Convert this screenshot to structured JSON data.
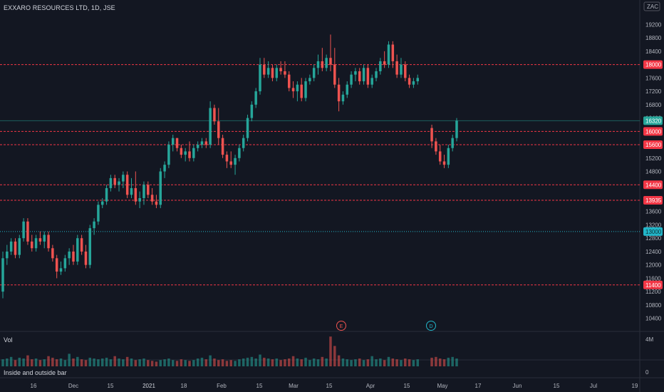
{
  "header": {
    "title": "EXXARO RESOURCES LTD, 1D, JSE"
  },
  "currency_badge": "ZAC",
  "volume_panel": {
    "label": "Vol",
    "scale_top": "4M"
  },
  "indicator_panel": {
    "label": "Inside and outside bar",
    "scale_zero": "0"
  },
  "colors": {
    "bg": "#131722",
    "up": "#26a69a",
    "down": "#ef5350",
    "text": "#b2b5be",
    "hline": "#f23645",
    "cyan": "#22b5c8",
    "inside": "#f0e68c"
  },
  "chart_data": {
    "type": "candlestick",
    "title": "EXXARO RESOURCES LTD, 1D, JSE",
    "y_axis_ticks": [
      10400,
      10800,
      11200,
      11600,
      12000,
      12400,
      12800,
      13200,
      13600,
      14000,
      14400,
      14800,
      15200,
      15600,
      16000,
      16400,
      16800,
      17200,
      17600,
      18000,
      18400,
      18800,
      19200
    ],
    "y_range": [
      10200,
      19700
    ],
    "x_axis_labels": [
      "16",
      "Dec",
      "15",
      "2021",
      "18",
      "Feb",
      "15",
      "Mar",
      "15",
      "Apr",
      "15",
      "May",
      "17",
      "Jun",
      "15",
      "Jul",
      "19"
    ],
    "price_lines": [
      {
        "value": 18000,
        "label": "18000",
        "style": "dashed",
        "color": "#f23645"
      },
      {
        "value": 16000,
        "label": "16000",
        "style": "dashed",
        "color": "#f23645"
      },
      {
        "value": 15600,
        "label": "15600",
        "style": "dashed",
        "color": "#f23645"
      },
      {
        "value": 14400,
        "label": "14400",
        "style": "dashed",
        "color": "#f23645"
      },
      {
        "value": 13935,
        "label": "13935",
        "style": "dashed",
        "color": "#f23645"
      },
      {
        "value": 13000,
        "label": "13000",
        "style": "dotted",
        "color": "#22b5c8"
      },
      {
        "value": 11400,
        "label": "11400",
        "style": "dashed",
        "color": "#f23645"
      }
    ],
    "last_price": {
      "value": 16320,
      "label": "16320",
      "color": "#26a69a"
    },
    "events": [
      {
        "date_label": "Mar 22",
        "letter": "E",
        "color": "#ef5350"
      },
      {
        "date_label": "Apr 26",
        "letter": "D",
        "color": "#22b5c8"
      }
    ],
    "volume_axis": {
      "max_label": "4M"
    },
    "indicator_axis": {
      "zero_label": "0"
    },
    "candles": [
      {
        "o": 11200,
        "h": 12400,
        "l": 11000,
        "c": 12200
      },
      {
        "o": 12200,
        "h": 12600,
        "l": 12000,
        "c": 12400
      },
      {
        "o": 12400,
        "h": 12800,
        "l": 12300,
        "c": 12700
      },
      {
        "o": 12700,
        "h": 12800,
        "l": 12200,
        "c": 12300
      },
      {
        "o": 12300,
        "h": 12900,
        "l": 12200,
        "c": 12800
      },
      {
        "o": 12800,
        "h": 13400,
        "l": 12700,
        "c": 13300
      },
      {
        "o": 13300,
        "h": 13400,
        "l": 12600,
        "c": 12700
      },
      {
        "o": 12700,
        "h": 12900,
        "l": 12400,
        "c": 12500
      },
      {
        "o": 12500,
        "h": 12900,
        "l": 12400,
        "c": 12800
      },
      {
        "o": 12800,
        "h": 13000,
        "l": 12600,
        "c": 12700
      },
      {
        "o": 12700,
        "h": 13000,
        "l": 12500,
        "c": 12900
      },
      {
        "o": 12900,
        "h": 13000,
        "l": 12400,
        "c": 12500
      },
      {
        "o": 12500,
        "h": 12600,
        "l": 12100,
        "c": 12200
      },
      {
        "o": 12200,
        "h": 12300,
        "l": 11600,
        "c": 11800
      },
      {
        "o": 11800,
        "h": 12100,
        "l": 11700,
        "c": 11900
      },
      {
        "o": 11900,
        "h": 12300,
        "l": 11800,
        "c": 12200
      },
      {
        "o": 12200,
        "h": 12500,
        "l": 12000,
        "c": 12400
      },
      {
        "o": 12400,
        "h": 12600,
        "l": 12000,
        "c": 12100
      },
      {
        "o": 12100,
        "h": 12900,
        "l": 12000,
        "c": 12800
      },
      {
        "o": 12800,
        "h": 12900,
        "l": 12300,
        "c": 12400
      },
      {
        "o": 12400,
        "h": 12600,
        "l": 11900,
        "c": 12000
      },
      {
        "o": 12000,
        "h": 13200,
        "l": 11900,
        "c": 13100
      },
      {
        "o": 13100,
        "h": 13400,
        "l": 12900,
        "c": 13300
      },
      {
        "o": 13300,
        "h": 13900,
        "l": 13200,
        "c": 13800
      },
      {
        "o": 13800,
        "h": 14000,
        "l": 13700,
        "c": 13900
      },
      {
        "o": 13900,
        "h": 14400,
        "l": 13800,
        "c": 14300
      },
      {
        "o": 14300,
        "h": 14700,
        "l": 14200,
        "c": 14600
      },
      {
        "o": 14600,
        "h": 14700,
        "l": 14300,
        "c": 14400
      },
      {
        "o": 14400,
        "h": 14600,
        "l": 14200,
        "c": 14500
      },
      {
        "o": 14500,
        "h": 14800,
        "l": 14300,
        "c": 14700
      },
      {
        "o": 14700,
        "h": 14800,
        "l": 14000,
        "c": 14100
      },
      {
        "o": 14100,
        "h": 14600,
        "l": 14000,
        "c": 14300
      },
      {
        "o": 14300,
        "h": 14800,
        "l": 13800,
        "c": 13900
      },
      {
        "o": 13900,
        "h": 14200,
        "l": 13700,
        "c": 14000
      },
      {
        "o": 14000,
        "h": 14500,
        "l": 13800,
        "c": 14400
      },
      {
        "o": 14400,
        "h": 14500,
        "l": 14000,
        "c": 14100
      },
      {
        "o": 14100,
        "h": 14300,
        "l": 13800,
        "c": 13900
      },
      {
        "o": 13900,
        "h": 14100,
        "l": 13700,
        "c": 13800
      },
      {
        "o": 13800,
        "h": 14900,
        "l": 13700,
        "c": 14800
      },
      {
        "o": 14800,
        "h": 15100,
        "l": 14600,
        "c": 15000
      },
      {
        "o": 15000,
        "h": 15700,
        "l": 14900,
        "c": 15600
      },
      {
        "o": 15600,
        "h": 15900,
        "l": 15400,
        "c": 15800
      },
      {
        "o": 15800,
        "h": 15800,
        "l": 15400,
        "c": 15500
      },
      {
        "o": 15500,
        "h": 15600,
        "l": 15200,
        "c": 15300
      },
      {
        "o": 15300,
        "h": 15500,
        "l": 15100,
        "c": 15400
      },
      {
        "o": 15400,
        "h": 15700,
        "l": 15100,
        "c": 15200
      },
      {
        "o": 15200,
        "h": 15600,
        "l": 15100,
        "c": 15500
      },
      {
        "o": 15500,
        "h": 15700,
        "l": 15400,
        "c": 15600
      },
      {
        "o": 15600,
        "h": 15800,
        "l": 15500,
        "c": 15700
      },
      {
        "o": 15700,
        "h": 15800,
        "l": 15500,
        "c": 15600
      },
      {
        "o": 15600,
        "h": 16900,
        "l": 15500,
        "c": 16700
      },
      {
        "o": 16700,
        "h": 16800,
        "l": 16200,
        "c": 16300
      },
      {
        "o": 16300,
        "h": 16700,
        "l": 15600,
        "c": 15800
      },
      {
        "o": 15800,
        "h": 15900,
        "l": 15200,
        "c": 15300
      },
      {
        "o": 15300,
        "h": 15400,
        "l": 14900,
        "c": 15100
      },
      {
        "o": 15100,
        "h": 15400,
        "l": 14900,
        "c": 15000
      },
      {
        "o": 15000,
        "h": 15300,
        "l": 14700,
        "c": 15200
      },
      {
        "o": 15200,
        "h": 15600,
        "l": 15100,
        "c": 15500
      },
      {
        "o": 15500,
        "h": 15900,
        "l": 15400,
        "c": 15800
      },
      {
        "o": 15800,
        "h": 16500,
        "l": 15700,
        "c": 16400
      },
      {
        "o": 16400,
        "h": 16900,
        "l": 16300,
        "c": 16800
      },
      {
        "o": 16800,
        "h": 17300,
        "l": 16700,
        "c": 17200
      },
      {
        "o": 17200,
        "h": 18200,
        "l": 17100,
        "c": 18000
      },
      {
        "o": 18000,
        "h": 18200,
        "l": 17600,
        "c": 17700
      },
      {
        "o": 17700,
        "h": 18100,
        "l": 17600,
        "c": 17900
      },
      {
        "o": 17900,
        "h": 18000,
        "l": 17500,
        "c": 17600
      },
      {
        "o": 17600,
        "h": 18000,
        "l": 17500,
        "c": 17900
      },
      {
        "o": 17900,
        "h": 18100,
        "l": 17700,
        "c": 17800
      },
      {
        "o": 17800,
        "h": 18100,
        "l": 17600,
        "c": 17700
      },
      {
        "o": 17700,
        "h": 17800,
        "l": 17200,
        "c": 17300
      },
      {
        "o": 17300,
        "h": 17500,
        "l": 17000,
        "c": 17200
      },
      {
        "o": 17200,
        "h": 17500,
        "l": 16900,
        "c": 17400
      },
      {
        "o": 17400,
        "h": 17600,
        "l": 16900,
        "c": 17000
      },
      {
        "o": 17000,
        "h": 17600,
        "l": 16900,
        "c": 17500
      },
      {
        "o": 17500,
        "h": 17700,
        "l": 17400,
        "c": 17600
      },
      {
        "o": 17600,
        "h": 18000,
        "l": 17500,
        "c": 17900
      },
      {
        "o": 17900,
        "h": 18300,
        "l": 17700,
        "c": 18100
      },
      {
        "o": 18100,
        "h": 18500,
        "l": 17800,
        "c": 17900
      },
      {
        "o": 17900,
        "h": 18300,
        "l": 17800,
        "c": 18200
      },
      {
        "o": 18200,
        "h": 18900,
        "l": 17800,
        "c": 18000
      },
      {
        "o": 18000,
        "h": 18500,
        "l": 17300,
        "c": 17400
      },
      {
        "o": 17400,
        "h": 17600,
        "l": 16600,
        "c": 16900
      },
      {
        "o": 16900,
        "h": 17200,
        "l": 16800,
        "c": 17100
      },
      {
        "o": 17100,
        "h": 17500,
        "l": 17000,
        "c": 17400
      },
      {
        "o": 17400,
        "h": 17800,
        "l": 17300,
        "c": 17700
      },
      {
        "o": 17700,
        "h": 17900,
        "l": 17500,
        "c": 17800
      },
      {
        "o": 17800,
        "h": 17900,
        "l": 17400,
        "c": 17500
      },
      {
        "o": 17500,
        "h": 18000,
        "l": 17400,
        "c": 17900
      },
      {
        "o": 17900,
        "h": 18000,
        "l": 17300,
        "c": 17400
      },
      {
        "o": 17400,
        "h": 17700,
        "l": 17300,
        "c": 17600
      },
      {
        "o": 17600,
        "h": 17900,
        "l": 17500,
        "c": 17800
      },
      {
        "o": 17800,
        "h": 18200,
        "l": 17700,
        "c": 18100
      },
      {
        "o": 18100,
        "h": 18400,
        "l": 17900,
        "c": 18000
      },
      {
        "o": 18000,
        "h": 18700,
        "l": 17900,
        "c": 18600
      },
      {
        "o": 18600,
        "h": 18700,
        "l": 17900,
        "c": 18100
      },
      {
        "o": 18100,
        "h": 18300,
        "l": 17600,
        "c": 17700
      },
      {
        "o": 17700,
        "h": 18200,
        "l": 17600,
        "c": 18000
      },
      {
        "o": 18000,
        "h": 18100,
        "l": 17500,
        "c": 17600
      },
      {
        "o": 17600,
        "h": 17700,
        "l": 17300,
        "c": 17400
      },
      {
        "o": 17400,
        "h": 17600,
        "l": 17300,
        "c": 17500
      },
      {
        "o": 17500,
        "h": 17700,
        "l": 17400,
        "c": 17600
      },
      {
        "o": 16100,
        "h": 16200,
        "l": 15500,
        "c": 15700
      },
      {
        "o": 15700,
        "h": 15800,
        "l": 15300,
        "c": 15400
      },
      {
        "o": 15400,
        "h": 15600,
        "l": 15000,
        "c": 15100
      },
      {
        "o": 15100,
        "h": 15300,
        "l": 14900,
        "c": 15000
      },
      {
        "o": 15000,
        "h": 15600,
        "l": 14900,
        "c": 15500
      },
      {
        "o": 15500,
        "h": 15900,
        "l": 15400,
        "c": 15800
      },
      {
        "o": 15800,
        "h": 16400,
        "l": 15700,
        "c": 16320
      }
    ],
    "volume": [
      0.9,
      1.0,
      1.2,
      0.8,
      1.1,
      1.0,
      1.4,
      0.9,
      1.0,
      0.8,
      0.9,
      1.3,
      1.1,
      0.9,
      1.0,
      0.8,
      1.6,
      1.0,
      1.2,
      0.9,
      0.8,
      1.1,
      1.0,
      0.9,
      1.0,
      1.1,
      0.9,
      1.3,
      1.0,
      0.9,
      1.2,
      1.0,
      0.8,
      0.9,
      1.0,
      0.8,
      0.7,
      0.6,
      0.8,
      0.9,
      1.0,
      0.8,
      0.7,
      0.9,
      0.8,
      0.7,
      0.8,
      1.0,
      1.1,
      0.9,
      1.4,
      1.0,
      0.8,
      0.9,
      0.7,
      0.8,
      0.7,
      0.9,
      1.0,
      1.1,
      1.2,
      1.0,
      1.5,
      1.1,
      1.0,
      0.9,
      1.0,
      0.8,
      0.9,
      1.0,
      1.3,
      1.0,
      0.9,
      1.1,
      0.8,
      1.0,
      0.9,
      1.2,
      1.0,
      3.8,
      2.6,
      1.4,
      1.0,
      0.9,
      0.8,
      0.9,
      1.0,
      0.8,
      0.9,
      1.3,
      0.9,
      1.0,
      0.8,
      1.2,
      1.0,
      0.9,
      0.8,
      1.0,
      0.9,
      0.8,
      0.9,
      1.1,
      1.2,
      1.0,
      0.9,
      1.1,
      1.2,
      1.0
    ]
  }
}
